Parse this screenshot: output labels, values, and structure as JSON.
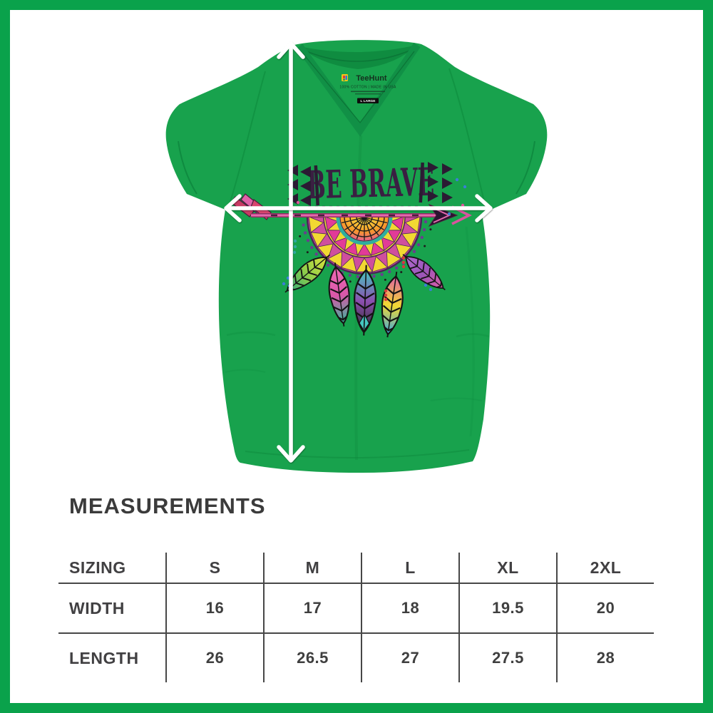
{
  "frame": {
    "color": "#0aa24b"
  },
  "shirt": {
    "color": "#18a24d",
    "brand": "TeeHunt",
    "care_label": "100% COTTON | MADE IN USA",
    "size_tag": "L LARGE",
    "graphic_text": "BE BRAVE"
  },
  "section": {
    "title": "MEASUREMENTS"
  },
  "size_chart": {
    "header": [
      "SIZING",
      "S",
      "M",
      "L",
      "XL",
      "2XL"
    ],
    "rows": [
      {
        "label": "WIDTH",
        "values": [
          "16",
          "17",
          "18",
          "19.5",
          "20"
        ]
      },
      {
        "label": "LENGTH",
        "values": [
          "26",
          "26.5",
          "27",
          "27.5",
          "28"
        ]
      }
    ]
  }
}
